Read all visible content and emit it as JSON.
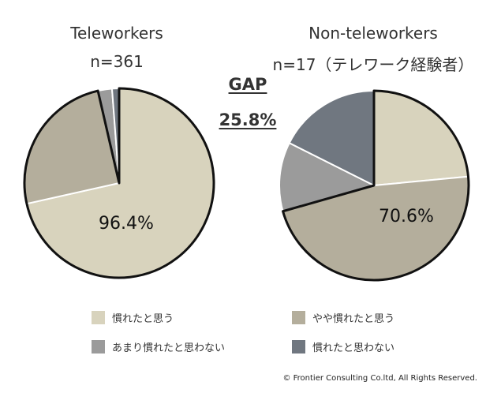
{
  "chart_data": [
    {
      "type": "pie",
      "title": "Teleworkers",
      "subtitle": "n=361",
      "categories": [
        "慣れたと思う",
        "やや慣れたと思う",
        "あまり慣れたと思わない",
        "慣れたと思わない"
      ],
      "values": [
        71.5,
        24.9,
        2.4,
        1.2
      ],
      "label": "96.4%"
    },
    {
      "type": "pie",
      "title": "Non-teleworkers",
      "subtitle": "n=17（テレワーク経験者）",
      "categories": [
        "慣れたと思う",
        "やや慣れたと思う",
        "あまり慣れたと思わない",
        "慣れたと思わない"
      ],
      "values": [
        23.5,
        47.1,
        11.8,
        17.6
      ],
      "label": "70.6%"
    }
  ],
  "gap": {
    "label": "GAP",
    "value": "25.8%"
  },
  "legend": [
    {
      "label": "慣れたと思う",
      "color": "#d8d3bd"
    },
    {
      "label": "やや慣れたと思う",
      "color": "#b4ae9c"
    },
    {
      "label": "あまり慣れたと思わない",
      "color": "#9b9b9b"
    },
    {
      "label": "慣れたと思わない",
      "color": "#707780"
    }
  ],
  "copyright": "© Frontier Consulting Co.ltd, All Rights Reserved."
}
